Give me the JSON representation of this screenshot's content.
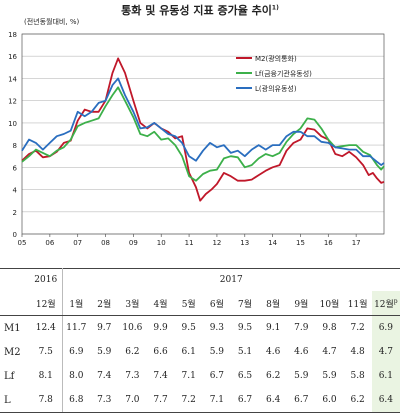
{
  "title": "통화 및 유동성 지표 증가율 추이",
  "title_note": "1)",
  "chart_data": {
    "type": "line",
    "ylabel": "(전년동월대비, %)",
    "ylim": [
      0,
      18
    ],
    "yticks": [
      0,
      2,
      4,
      6,
      8,
      10,
      12,
      14,
      16,
      18
    ],
    "xlim": [
      2005,
      2018
    ],
    "xtick_labels": [
      "05",
      "06",
      "07",
      "08",
      "09",
      "10",
      "11",
      "12",
      "13",
      "14",
      "15",
      "16",
      "17"
    ],
    "legend_position": "top-right",
    "series": [
      {
        "name": "M2(광의통화)",
        "color": "#c0182a",
        "points": [
          [
            2005.0,
            6.6
          ],
          [
            2005.25,
            7.2
          ],
          [
            2005.5,
            7.5
          ],
          [
            2005.75,
            6.9
          ],
          [
            2006.0,
            7.0
          ],
          [
            2006.25,
            7.4
          ],
          [
            2006.5,
            8.2
          ],
          [
            2006.75,
            8.4
          ],
          [
            2007.0,
            10.2
          ],
          [
            2007.25,
            11.2
          ],
          [
            2007.5,
            11.0
          ],
          [
            2007.75,
            11.0
          ],
          [
            2008.0,
            12.0
          ],
          [
            2008.25,
            14.5
          ],
          [
            2008.45,
            15.8
          ],
          [
            2008.7,
            14.5
          ],
          [
            2009.0,
            12.0
          ],
          [
            2009.25,
            10.0
          ],
          [
            2009.5,
            9.5
          ],
          [
            2009.75,
            10.0
          ],
          [
            2010.0,
            9.5
          ],
          [
            2010.25,
            9.2
          ],
          [
            2010.5,
            8.6
          ],
          [
            2010.75,
            8.8
          ],
          [
            2011.0,
            5.5
          ],
          [
            2011.25,
            4.2
          ],
          [
            2011.4,
            3.0
          ],
          [
            2011.6,
            3.6
          ],
          [
            2011.8,
            4.0
          ],
          [
            2012.0,
            4.5
          ],
          [
            2012.25,
            5.5
          ],
          [
            2012.5,
            5.2
          ],
          [
            2012.75,
            4.8
          ],
          [
            2013.0,
            4.8
          ],
          [
            2013.25,
            4.9
          ],
          [
            2013.5,
            5.3
          ],
          [
            2013.75,
            5.7
          ],
          [
            2014.0,
            6.0
          ],
          [
            2014.25,
            6.2
          ],
          [
            2014.5,
            7.5
          ],
          [
            2014.75,
            8.2
          ],
          [
            2015.0,
            8.5
          ],
          [
            2015.25,
            9.5
          ],
          [
            2015.5,
            9.4
          ],
          [
            2015.75,
            8.8
          ],
          [
            2016.0,
            8.5
          ],
          [
            2016.25,
            7.2
          ],
          [
            2016.5,
            7.0
          ],
          [
            2016.75,
            7.4
          ],
          [
            2017.0,
            6.9
          ],
          [
            2017.25,
            6.2
          ],
          [
            2017.45,
            5.3
          ],
          [
            2017.6,
            5.5
          ],
          [
            2017.75,
            5.0
          ],
          [
            2017.9,
            4.6
          ],
          [
            2018.0,
            4.7
          ]
        ]
      },
      {
        "name": "Lf(금융기관유동성)",
        "color": "#3cb04a",
        "points": [
          [
            2005.0,
            6.5
          ],
          [
            2005.25,
            7.0
          ],
          [
            2005.5,
            7.6
          ],
          [
            2005.75,
            7.3
          ],
          [
            2006.0,
            7.0
          ],
          [
            2006.25,
            7.5
          ],
          [
            2006.5,
            7.8
          ],
          [
            2006.75,
            8.5
          ],
          [
            2007.0,
            9.7
          ],
          [
            2007.25,
            10.0
          ],
          [
            2007.5,
            10.2
          ],
          [
            2007.75,
            10.4
          ],
          [
            2008.0,
            11.5
          ],
          [
            2008.25,
            12.5
          ],
          [
            2008.45,
            13.2
          ],
          [
            2008.7,
            12.0
          ],
          [
            2009.0,
            10.5
          ],
          [
            2009.25,
            9.0
          ],
          [
            2009.5,
            8.8
          ],
          [
            2009.75,
            9.2
          ],
          [
            2010.0,
            8.5
          ],
          [
            2010.25,
            8.6
          ],
          [
            2010.5,
            8.0
          ],
          [
            2010.75,
            7.0
          ],
          [
            2011.0,
            5.2
          ],
          [
            2011.25,
            4.8
          ],
          [
            2011.5,
            5.4
          ],
          [
            2011.75,
            5.7
          ],
          [
            2012.0,
            5.8
          ],
          [
            2012.25,
            6.8
          ],
          [
            2012.5,
            7.0
          ],
          [
            2012.75,
            6.9
          ],
          [
            2013.0,
            6.0
          ],
          [
            2013.25,
            6.2
          ],
          [
            2013.5,
            6.8
          ],
          [
            2013.75,
            7.2
          ],
          [
            2014.0,
            7.0
          ],
          [
            2014.25,
            7.3
          ],
          [
            2014.5,
            8.3
          ],
          [
            2014.75,
            9.0
          ],
          [
            2015.0,
            9.5
          ],
          [
            2015.25,
            10.4
          ],
          [
            2015.5,
            10.3
          ],
          [
            2015.75,
            9.5
          ],
          [
            2016.0,
            8.5
          ],
          [
            2016.25,
            7.8
          ],
          [
            2016.5,
            7.9
          ],
          [
            2016.75,
            8.0
          ],
          [
            2017.0,
            8.0
          ],
          [
            2017.25,
            7.4
          ],
          [
            2017.5,
            7.1
          ],
          [
            2017.75,
            6.2
          ],
          [
            2017.9,
            5.8
          ],
          [
            2018.0,
            6.1
          ]
        ]
      },
      {
        "name": "L(광의유동성)",
        "color": "#2a6ebf",
        "points": [
          [
            2005.0,
            7.5
          ],
          [
            2005.25,
            8.5
          ],
          [
            2005.5,
            8.2
          ],
          [
            2005.75,
            7.6
          ],
          [
            2006.0,
            8.2
          ],
          [
            2006.25,
            8.8
          ],
          [
            2006.5,
            9.0
          ],
          [
            2006.75,
            9.3
          ],
          [
            2007.0,
            11.0
          ],
          [
            2007.25,
            10.6
          ],
          [
            2007.5,
            11.0
          ],
          [
            2007.75,
            11.8
          ],
          [
            2008.0,
            12.0
          ],
          [
            2008.25,
            13.4
          ],
          [
            2008.45,
            14.0
          ],
          [
            2008.7,
            12.5
          ],
          [
            2009.0,
            11.0
          ],
          [
            2009.25,
            9.5
          ],
          [
            2009.5,
            9.6
          ],
          [
            2009.75,
            10.0
          ],
          [
            2010.0,
            9.5
          ],
          [
            2010.25,
            9.0
          ],
          [
            2010.5,
            8.8
          ],
          [
            2010.75,
            8.2
          ],
          [
            2011.0,
            7.0
          ],
          [
            2011.25,
            6.6
          ],
          [
            2011.5,
            7.5
          ],
          [
            2011.75,
            8.2
          ],
          [
            2012.0,
            7.8
          ],
          [
            2012.25,
            8.0
          ],
          [
            2012.5,
            7.3
          ],
          [
            2012.75,
            7.5
          ],
          [
            2013.0,
            7.0
          ],
          [
            2013.25,
            7.6
          ],
          [
            2013.5,
            8.0
          ],
          [
            2013.75,
            7.6
          ],
          [
            2014.0,
            8.0
          ],
          [
            2014.25,
            8.0
          ],
          [
            2014.5,
            8.8
          ],
          [
            2014.75,
            9.2
          ],
          [
            2015.0,
            9.2
          ],
          [
            2015.25,
            8.8
          ],
          [
            2015.5,
            8.8
          ],
          [
            2015.75,
            8.3
          ],
          [
            2016.0,
            8.2
          ],
          [
            2016.25,
            7.8
          ],
          [
            2016.5,
            7.7
          ],
          [
            2016.75,
            7.6
          ],
          [
            2017.0,
            7.6
          ],
          [
            2017.25,
            7.0
          ],
          [
            2017.5,
            7.0
          ],
          [
            2017.75,
            6.5
          ],
          [
            2017.9,
            6.2
          ],
          [
            2018.0,
            6.4
          ]
        ]
      }
    ]
  },
  "table": {
    "year_left": "2016",
    "year_right": "2017",
    "months": [
      "12월",
      "1월",
      "2월",
      "3월",
      "4월",
      "5월",
      "6월",
      "7월",
      "8월",
      "9월",
      "10월",
      "11월",
      "12월"
    ],
    "last_month_note": "p",
    "rows": [
      {
        "label": "M1",
        "values": [
          "12.4",
          "11.7",
          "9.7",
          "10.6",
          "9.9",
          "9.5",
          "9.3",
          "9.5",
          "9.1",
          "7.9",
          "9.8",
          "7.2",
          "6.9"
        ]
      },
      {
        "label": "M2",
        "values": [
          "7.5",
          "6.9",
          "5.9",
          "6.2",
          "6.6",
          "6.1",
          "5.9",
          "5.1",
          "4.6",
          "4.6",
          "4.7",
          "4.8",
          "4.7"
        ]
      },
      {
        "label": "Lf",
        "values": [
          "8.1",
          "8.0",
          "7.4",
          "7.3",
          "7.4",
          "7.1",
          "6.7",
          "6.5",
          "6.2",
          "5.9",
          "5.9",
          "5.8",
          "6.1"
        ]
      },
      {
        "label": "L",
        "values": [
          "7.8",
          "6.8",
          "7.3",
          "7.0",
          "7.7",
          "7.2",
          "7.1",
          "6.7",
          "6.4",
          "6.7",
          "6.0",
          "6.2",
          "6.4"
        ]
      }
    ]
  }
}
